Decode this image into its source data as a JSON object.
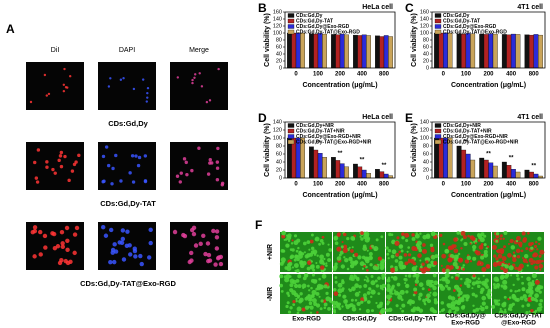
{
  "panel_a": {
    "label": "A",
    "columns": [
      "DiI",
      "DAPI",
      "Merge"
    ],
    "rows": [
      "CDs:Gd,Dy",
      "CDs:Gd,Dy-TAT",
      "CDs:Gd,Dy-TAT@Exo-RGD"
    ]
  },
  "chart_data": [
    {
      "type": "bar",
      "label": "B",
      "subtitle": "HeLa cell",
      "xlabel": "Concentration (μg/mL)",
      "ylabel": "Cell viability (%)",
      "categories": [
        "0",
        "100",
        "200",
        "400",
        "800"
      ],
      "series": [
        {
          "name": "CDs:Gd,Dy",
          "color": "#111111",
          "values": [
            100,
            98,
            96,
            94,
            92
          ]
        },
        {
          "name": "CDs:Gd,Dy-TAT",
          "color": "#b22222",
          "values": [
            100,
            97,
            95,
            93,
            90
          ]
        },
        {
          "name": "CDs:Gd,Dy@Exo-RGD",
          "color": "#2b2bd9",
          "values": [
            100,
            99,
            97,
            95,
            93
          ]
        },
        {
          "name": "CDs:Gd,Dy-TAT@Exo-RGD",
          "color": "#c9a45a",
          "values": [
            100,
            97,
            95,
            93,
            90
          ]
        }
      ],
      "ylim": [
        0,
        160
      ],
      "yticks": [
        0,
        20,
        40,
        60,
        80,
        100,
        120,
        140,
        160
      ]
    },
    {
      "type": "bar",
      "label": "C",
      "subtitle": "4T1 cell",
      "xlabel": "Concentration (μg/mL)",
      "ylabel": "Cell viability (%)",
      "categories": [
        "0",
        "100",
        "200",
        "400",
        "800"
      ],
      "series": [
        {
          "name": "CDs:Gd,Dy",
          "color": "#111111",
          "values": [
            100,
            98,
            97,
            96,
            95
          ]
        },
        {
          "name": "CDs:Gd,Dy-TAT",
          "color": "#b22222",
          "values": [
            100,
            97,
            96,
            95,
            94
          ]
        },
        {
          "name": "CDs:Gd,Dy@Exo-RGD",
          "color": "#2b2bd9",
          "values": [
            100,
            99,
            98,
            97,
            96
          ]
        },
        {
          "name": "CDs:Gd,Dy-TAT@Exo-RGD",
          "color": "#c9a45a",
          "values": [
            100,
            98,
            97,
            96,
            94
          ]
        }
      ],
      "ylim": [
        0,
        160
      ],
      "yticks": [
        0,
        20,
        40,
        60,
        80,
        100,
        120,
        140,
        160
      ]
    },
    {
      "type": "bar",
      "label": "D",
      "subtitle": "HeLa cell",
      "xlabel": "Concentration (μg/mL)",
      "ylabel": "Cell viability (%)",
      "categories": [
        "0",
        "100",
        "200",
        "400",
        "800"
      ],
      "series": [
        {
          "name": "CDs:Gd,Dy+NIR",
          "color": "#111111",
          "values": [
            100,
            78,
            52,
            35,
            22
          ]
        },
        {
          "name": "CDs:Gd,Dy-TAT+NIR",
          "color": "#b22222",
          "values": [
            100,
            70,
            44,
            28,
            16
          ]
        },
        {
          "name": "CDs:Gd,Dy@Exo-RGD+NIR",
          "color": "#2b2bd9",
          "values": [
            100,
            62,
            36,
            20,
            10
          ]
        },
        {
          "name": "CDs:Gd,Dy-TAT@Exo-RGD+NIR",
          "color": "#c9a45a",
          "values": [
            100,
            52,
            28,
            12,
            6
          ]
        }
      ],
      "significance": [
        null,
        "**",
        "**",
        "**",
        "**"
      ],
      "ylim": [
        0,
        140
      ],
      "yticks": [
        0,
        20,
        40,
        60,
        80,
        100,
        120,
        140
      ]
    },
    {
      "type": "bar",
      "label": "E",
      "subtitle": "4T1 cell",
      "xlabel": "Concentration (μg/mL)",
      "ylabel": "Cell viability (%)",
      "categories": [
        "0",
        "100",
        "200",
        "400",
        "800"
      ],
      "series": [
        {
          "name": "CDs:Gd,Dy+NIR",
          "color": "#111111",
          "values": [
            100,
            80,
            50,
            40,
            20
          ]
        },
        {
          "name": "CDs:Gd,Dy-TAT+NIR",
          "color": "#b22222",
          "values": [
            100,
            70,
            45,
            32,
            15
          ]
        },
        {
          "name": "CDs:Gd,Dy@Exo-RGD+NIR",
          "color": "#2b2bd9",
          "values": [
            100,
            60,
            38,
            22,
            10
          ]
        },
        {
          "name": "CDs:Gd,Dy-TAT@Exo-RGD+NIR",
          "color": "#c9a45a",
          "values": [
            100,
            45,
            30,
            15,
            5
          ]
        }
      ],
      "significance": [
        null,
        "**",
        "**",
        "**",
        "**"
      ],
      "ylim": [
        0,
        140
      ],
      "yticks": [
        0,
        20,
        40,
        60,
        80,
        100,
        120,
        140
      ]
    }
  ],
  "panel_f": {
    "label": "F",
    "rows": [
      "+NIR",
      "-NIR"
    ],
    "columns": [
      [
        "Exo-RGD"
      ],
      [
        "CDs:Gd,Dy"
      ],
      [
        "CDs:Gd,Dy-TAT"
      ],
      [
        "CDs:Gd,Dy@",
        "Exo-RGD"
      ],
      [
        "CDs:Gd,Dy-TAT",
        "@Exo-RGD"
      ]
    ]
  }
}
